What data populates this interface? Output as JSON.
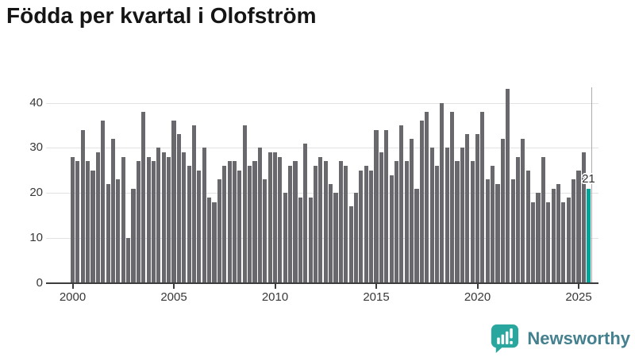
{
  "title": "Födda per kvartal i Olofström",
  "chart_data": {
    "type": "bar",
    "title": "Födda per kvartal i Olofström",
    "x_start": "2000-Q1",
    "frequency": "quarterly",
    "values": [
      28,
      27,
      34,
      27,
      25,
      29,
      36,
      22,
      32,
      23,
      28,
      10,
      21,
      27,
      38,
      28,
      27,
      30,
      29,
      28,
      36,
      33,
      29,
      26,
      35,
      25,
      30,
      19,
      18,
      23,
      26,
      27,
      27,
      25,
      35,
      26,
      27,
      30,
      23,
      29,
      29,
      28,
      20,
      26,
      27,
      19,
      31,
      19,
      26,
      28,
      27,
      22,
      20,
      27,
      26,
      17,
      20,
      25,
      26,
      25,
      34,
      29,
      34,
      24,
      27,
      35,
      27,
      32,
      21,
      36,
      38,
      30,
      26,
      40,
      30,
      38,
      27,
      30,
      33,
      27,
      33,
      38,
      23,
      26,
      22,
      32,
      43,
      23,
      28,
      32,
      25,
      18,
      20,
      28,
      18,
      21,
      22,
      18,
      19,
      23,
      25,
      29,
      21
    ],
    "highlight": {
      "index": 102,
      "quarter": "2025-Q3",
      "value": 21,
      "label": "21"
    },
    "x_ticks": [
      "2000",
      "2005",
      "2010",
      "2015",
      "2020",
      "2025"
    ],
    "y_ticks": [
      0,
      10,
      20,
      30,
      40
    ],
    "ylim": [
      0,
      44
    ],
    "grid": true,
    "legend": "none",
    "colors": {
      "bar": "#69696d",
      "highlight": "#00a69c",
      "gridline": "#e2e2e2",
      "axis": "#3d3d3d"
    }
  },
  "branding": {
    "logo_text": "Newsworthy",
    "icon_color": "#29a79e"
  }
}
